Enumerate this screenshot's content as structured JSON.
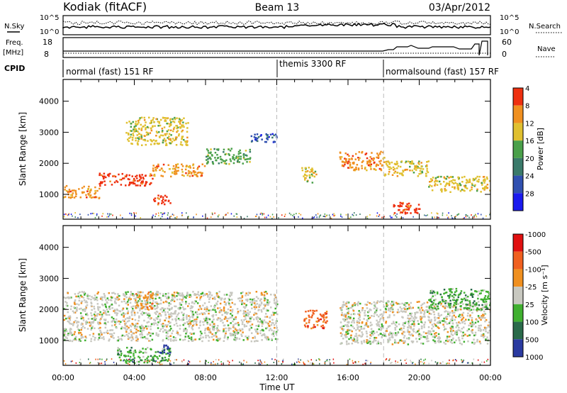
{
  "header": {
    "station": "Kodiak (fitACF)",
    "beam": "Beam 13",
    "date": "03/Apr/2012"
  },
  "noise_panel": {
    "left_label": "N.Sky",
    "right_label": "N.Search",
    "left_ticks": [
      "10^5",
      "10^0"
    ],
    "right_ticks": [
      "10^5",
      "10^0"
    ]
  },
  "freq_panel": {
    "left_label_1": "Freq.",
    "left_label_2": "[MHz]",
    "right_label": "Nave",
    "left_ticks": [
      "18",
      "8"
    ],
    "right_ticks": [
      "60",
      "0"
    ]
  },
  "cpid_panel": {
    "label": "CPID",
    "modes": [
      {
        "name": "normal (fast) 151 RF",
        "start_hour": 0
      },
      {
        "name": "themis 3300 RF",
        "start_hour": 12
      },
      {
        "name": "normalsound (fast) 157 RF",
        "start_hour": 18
      }
    ]
  },
  "colors": {
    "power": [
      "#1a1aee",
      "#3050b0",
      "#3a7a6a",
      "#4aa04a",
      "#e0c030",
      "#f09020",
      "#ee3010"
    ],
    "velocity": [
      "#2a3aa0",
      "#2a6a4a",
      "#40b030",
      "#c8c8c0",
      "#f09020",
      "#f06020",
      "#e01010"
    ]
  },
  "chart_data": [
    {
      "type": "heatmap",
      "name": "power",
      "ylabel": "Slant Range [km]",
      "yticks": [
        "1000",
        "2000",
        "3000",
        "4000"
      ],
      "ylim": [
        200,
        4700
      ],
      "xlim": [
        0,
        24
      ],
      "colorbar_label": "Power [dB]",
      "colorbar_ticks": [
        "4",
        "8",
        "12",
        "16",
        "20",
        "24",
        "28"
      ],
      "series": [
        {
          "x0": 0,
          "x1": 2,
          "y0": 900,
          "y1": 1300,
          "level": 5
        },
        {
          "x0": 2,
          "x1": 5,
          "y0": 1300,
          "y1": 1700,
          "level": 6
        },
        {
          "x0": 5,
          "x1": 6,
          "y0": 700,
          "y1": 1000,
          "level": 6
        },
        {
          "x0": 5,
          "x1": 8,
          "y0": 1600,
          "y1": 2000,
          "level": 5
        },
        {
          "x0": 8,
          "x1": 10.5,
          "y0": 2000,
          "y1": 2500,
          "level": 3
        },
        {
          "x0": 3.5,
          "x1": 7,
          "y0": 2600,
          "y1": 3500,
          "level": 4
        },
        {
          "x0": 10.5,
          "x1": 12,
          "y0": 2700,
          "y1": 3000,
          "level": 1
        },
        {
          "x0": 13.3,
          "x1": 14.2,
          "y0": 1400,
          "y1": 1900,
          "level": 4
        },
        {
          "x0": 15.5,
          "x1": 18,
          "y0": 1800,
          "y1": 2400,
          "level": 5
        },
        {
          "x0": 18,
          "x1": 20.5,
          "y0": 1600,
          "y1": 2100,
          "level": 4
        },
        {
          "x0": 20.5,
          "x1": 24,
          "y0": 1100,
          "y1": 1600,
          "level": 4
        },
        {
          "x0": 18.5,
          "x1": 20,
          "y0": 400,
          "y1": 800,
          "level": 6
        }
      ]
    },
    {
      "type": "heatmap",
      "name": "velocity",
      "ylabel": "Slant Range [km]",
      "yticks": [
        "1000",
        "2000",
        "3000",
        "4000"
      ],
      "ylim": [
        200,
        4700
      ],
      "xlim": [
        0,
        24
      ],
      "xlabel": "Time UT",
      "xticks": [
        "00:00",
        "04:00",
        "08:00",
        "12:00",
        "16:00",
        "20:00",
        "00:00"
      ],
      "colorbar_label": "Velocity [m s⁻¹]",
      "colorbar_ticks": [
        "1000",
        "500",
        "100",
        "25",
        "-25",
        "-100",
        "-500",
        "-1000"
      ],
      "series": [
        {
          "x0": 0,
          "x1": 12,
          "y0": 1000,
          "y1": 2600,
          "level": 3
        },
        {
          "x0": 3,
          "x1": 6,
          "y0": 300,
          "y1": 800,
          "level": 2
        },
        {
          "x0": 5.3,
          "x1": 6,
          "y0": 600,
          "y1": 900,
          "level": 0
        },
        {
          "x0": 4,
          "x1": 5,
          "y0": 2000,
          "y1": 2600,
          "level": 4
        },
        {
          "x0": 13.5,
          "x1": 14.8,
          "y0": 1400,
          "y1": 2000,
          "level": 5
        },
        {
          "x0": 15.5,
          "x1": 24,
          "y0": 900,
          "y1": 2300,
          "level": 3
        },
        {
          "x0": 20.5,
          "x1": 24,
          "y0": 2000,
          "y1": 2700,
          "level": 2
        }
      ]
    }
  ]
}
